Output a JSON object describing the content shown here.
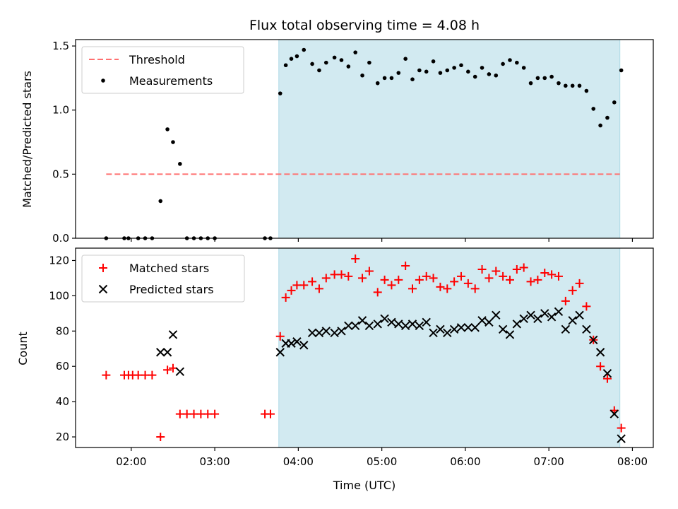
{
  "chart_data": {
    "title": "Flux total observing time = 4.08 h",
    "shaded_region": {
      "x_start": "03:46",
      "x_end": "07:51",
      "color": "#add8e6"
    },
    "x_axis": {
      "label": "Time (UTC)",
      "range": [
        "01:20",
        "08:15"
      ],
      "ticks": [
        "02:00",
        "03:00",
        "04:00",
        "05:00",
        "06:00",
        "07:00",
        "08:00"
      ]
    },
    "panels": [
      {
        "type": "scatter",
        "ylabel": "Matched/Predicted stars",
        "ylim": [
          0,
          1.55
        ],
        "yticks": [
          "0.0",
          "0.5",
          "1.0",
          "1.5"
        ],
        "legend": {
          "placement": "upper-left",
          "entries": [
            "Threshold",
            "Measurements"
          ]
        },
        "threshold": {
          "name": "Threshold",
          "value": 0.5,
          "x_start": "01:42",
          "x_end": "07:51",
          "color": "#ff7070",
          "style": "dashed"
        },
        "series": [
          {
            "name": "Measurements",
            "marker": "dot",
            "color": "#000000",
            "points": [
              [
                "01:42",
                0
              ],
              [
                "01:55",
                0
              ],
              [
                "01:58",
                0
              ],
              [
                "02:05",
                0
              ],
              [
                "02:10",
                0
              ],
              [
                "02:15",
                0
              ],
              [
                "02:21",
                0.29
              ],
              [
                "02:26",
                0.85
              ],
              [
                "02:30",
                0.75
              ],
              [
                "02:35",
                0.58
              ],
              [
                "02:40",
                0
              ],
              [
                "02:45",
                0
              ],
              [
                "02:50",
                0
              ],
              [
                "02:55",
                0
              ],
              [
                "03:00",
                0
              ],
              [
                "03:36",
                0
              ],
              [
                "03:40",
                0
              ],
              [
                "03:47",
                1.13
              ],
              [
                "03:51",
                1.35
              ],
              [
                "03:55",
                1.4
              ],
              [
                "03:59",
                1.42
              ],
              [
                "04:04",
                1.47
              ],
              [
                "04:10",
                1.36
              ],
              [
                "04:15",
                1.31
              ],
              [
                "04:20",
                1.37
              ],
              [
                "04:26",
                1.41
              ],
              [
                "04:31",
                1.39
              ],
              [
                "04:36",
                1.34
              ],
              [
                "04:41",
                1.45
              ],
              [
                "04:46",
                1.27
              ],
              [
                "04:51",
                1.37
              ],
              [
                "04:57",
                1.21
              ],
              [
                "05:02",
                1.25
              ],
              [
                "05:07",
                1.25
              ],
              [
                "05:12",
                1.29
              ],
              [
                "05:17",
                1.4
              ],
              [
                "05:22",
                1.24
              ],
              [
                "05:27",
                1.31
              ],
              [
                "05:32",
                1.3
              ],
              [
                "05:37",
                1.38
              ],
              [
                "05:42",
                1.29
              ],
              [
                "05:47",
                1.31
              ],
              [
                "05:52",
                1.33
              ],
              [
                "05:57",
                1.35
              ],
              [
                "06:02",
                1.3
              ],
              [
                "06:07",
                1.26
              ],
              [
                "06:12",
                1.33
              ],
              [
                "06:17",
                1.28
              ],
              [
                "06:22",
                1.27
              ],
              [
                "06:27",
                1.36
              ],
              [
                "06:32",
                1.39
              ],
              [
                "06:37",
                1.37
              ],
              [
                "06:42",
                1.33
              ],
              [
                "06:47",
                1.21
              ],
              [
                "06:52",
                1.25
              ],
              [
                "06:57",
                1.25
              ],
              [
                "07:02",
                1.26
              ],
              [
                "07:07",
                1.21
              ],
              [
                "07:12",
                1.19
              ],
              [
                "07:17",
                1.19
              ],
              [
                "07:22",
                1.19
              ],
              [
                "07:27",
                1.15
              ],
              [
                "07:32",
                1.01
              ],
              [
                "07:37",
                0.88
              ],
              [
                "07:42",
                0.94
              ],
              [
                "07:47",
                1.06
              ],
              [
                "07:52",
                1.31
              ]
            ]
          }
        ]
      },
      {
        "type": "scatter",
        "ylabel": "Count",
        "ylim": [
          14,
          127
        ],
        "yticks": [
          "20",
          "40",
          "60",
          "80",
          "100",
          "120"
        ],
        "legend": {
          "placement": "upper-left",
          "entries": [
            "Matched stars",
            "Predicted stars"
          ]
        },
        "series": [
          {
            "name": "Matched stars",
            "marker": "plus",
            "color": "#ff0000",
            "points": [
              [
                "01:42",
                55
              ],
              [
                "01:55",
                55
              ],
              [
                "01:58",
                55
              ],
              [
                "02:01",
                55
              ],
              [
                "02:05",
                55
              ],
              [
                "02:10",
                55
              ],
              [
                "02:15",
                55
              ],
              [
                "02:21",
                20
              ],
              [
                "02:26",
                58
              ],
              [
                "02:30",
                59
              ],
              [
                "02:35",
                33
              ],
              [
                "02:40",
                33
              ],
              [
                "02:45",
                33
              ],
              [
                "02:50",
                33
              ],
              [
                "02:55",
                33
              ],
              [
                "03:00",
                33
              ],
              [
                "03:36",
                33
              ],
              [
                "03:40",
                33
              ],
              [
                "03:47",
                77
              ],
              [
                "03:51",
                99
              ],
              [
                "03:55",
                103
              ],
              [
                "03:59",
                106
              ],
              [
                "04:04",
                106
              ],
              [
                "04:10",
                108
              ],
              [
                "04:15",
                104
              ],
              [
                "04:20",
                110
              ],
              [
                "04:26",
                112
              ],
              [
                "04:31",
                112
              ],
              [
                "04:36",
                111
              ],
              [
                "04:41",
                121
              ],
              [
                "04:46",
                110
              ],
              [
                "04:51",
                114
              ],
              [
                "04:57",
                102
              ],
              [
                "05:02",
                109
              ],
              [
                "05:07",
                106
              ],
              [
                "05:12",
                109
              ],
              [
                "05:17",
                117
              ],
              [
                "05:22",
                104
              ],
              [
                "05:27",
                109
              ],
              [
                "05:32",
                111
              ],
              [
                "05:37",
                110
              ],
              [
                "05:42",
                105
              ],
              [
                "05:47",
                104
              ],
              [
                "05:52",
                108
              ],
              [
                "05:57",
                111
              ],
              [
                "06:02",
                107
              ],
              [
                "06:07",
                104
              ],
              [
                "06:12",
                115
              ],
              [
                "06:17",
                110
              ],
              [
                "06:22",
                114
              ],
              [
                "06:27",
                111
              ],
              [
                "06:32",
                109
              ],
              [
                "06:37",
                115
              ],
              [
                "06:42",
                116
              ],
              [
                "06:47",
                108
              ],
              [
                "06:52",
                109
              ],
              [
                "06:57",
                113
              ],
              [
                "07:02",
                112
              ],
              [
                "07:07",
                111
              ],
              [
                "07:12",
                97
              ],
              [
                "07:17",
                103
              ],
              [
                "07:22",
                107
              ],
              [
                "07:27",
                94
              ],
              [
                "07:32",
                75
              ],
              [
                "07:37",
                60
              ],
              [
                "07:42",
                53
              ],
              [
                "07:47",
                35
              ],
              [
                "07:52",
                25
              ]
            ]
          },
          {
            "name": "Predicted stars",
            "marker": "cross",
            "color": "#000000",
            "points": [
              [
                "02:21",
                68
              ],
              [
                "02:26",
                68
              ],
              [
                "02:30",
                78
              ],
              [
                "02:35",
                57
              ],
              [
                "03:47",
                68
              ],
              [
                "03:51",
                73
              ],
              [
                "03:55",
                73
              ],
              [
                "03:59",
                74
              ],
              [
                "04:04",
                72
              ],
              [
                "04:10",
                79
              ],
              [
                "04:15",
                79
              ],
              [
                "04:20",
                80
              ],
              [
                "04:26",
                79
              ],
              [
                "04:31",
                80
              ],
              [
                "04:36",
                83
              ],
              [
                "04:41",
                83
              ],
              [
                "04:46",
                86
              ],
              [
                "04:51",
                83
              ],
              [
                "04:57",
                84
              ],
              [
                "05:02",
                87
              ],
              [
                "05:07",
                85
              ],
              [
                "05:12",
                84
              ],
              [
                "05:17",
                83
              ],
              [
                "05:22",
                84
              ],
              [
                "05:27",
                83
              ],
              [
                "05:32",
                85
              ],
              [
                "05:37",
                79
              ],
              [
                "05:42",
                81
              ],
              [
                "05:47",
                79
              ],
              [
                "05:52",
                81
              ],
              [
                "05:57",
                82
              ],
              [
                "06:02",
                82
              ],
              [
                "06:07",
                82
              ],
              [
                "06:12",
                86
              ],
              [
                "06:17",
                85
              ],
              [
                "06:22",
                89
              ],
              [
                "06:27",
                81
              ],
              [
                "06:32",
                78
              ],
              [
                "06:37",
                84
              ],
              [
                "06:42",
                87
              ],
              [
                "06:47",
                89
              ],
              [
                "06:52",
                87
              ],
              [
                "06:57",
                90
              ],
              [
                "07:02",
                88
              ],
              [
                "07:07",
                91
              ],
              [
                "07:12",
                81
              ],
              [
                "07:17",
                86
              ],
              [
                "07:22",
                89
              ],
              [
                "07:27",
                81
              ],
              [
                "07:32",
                75
              ],
              [
                "07:37",
                68
              ],
              [
                "07:42",
                56
              ],
              [
                "07:47",
                33
              ],
              [
                "07:52",
                19
              ]
            ]
          }
        ]
      }
    ]
  }
}
